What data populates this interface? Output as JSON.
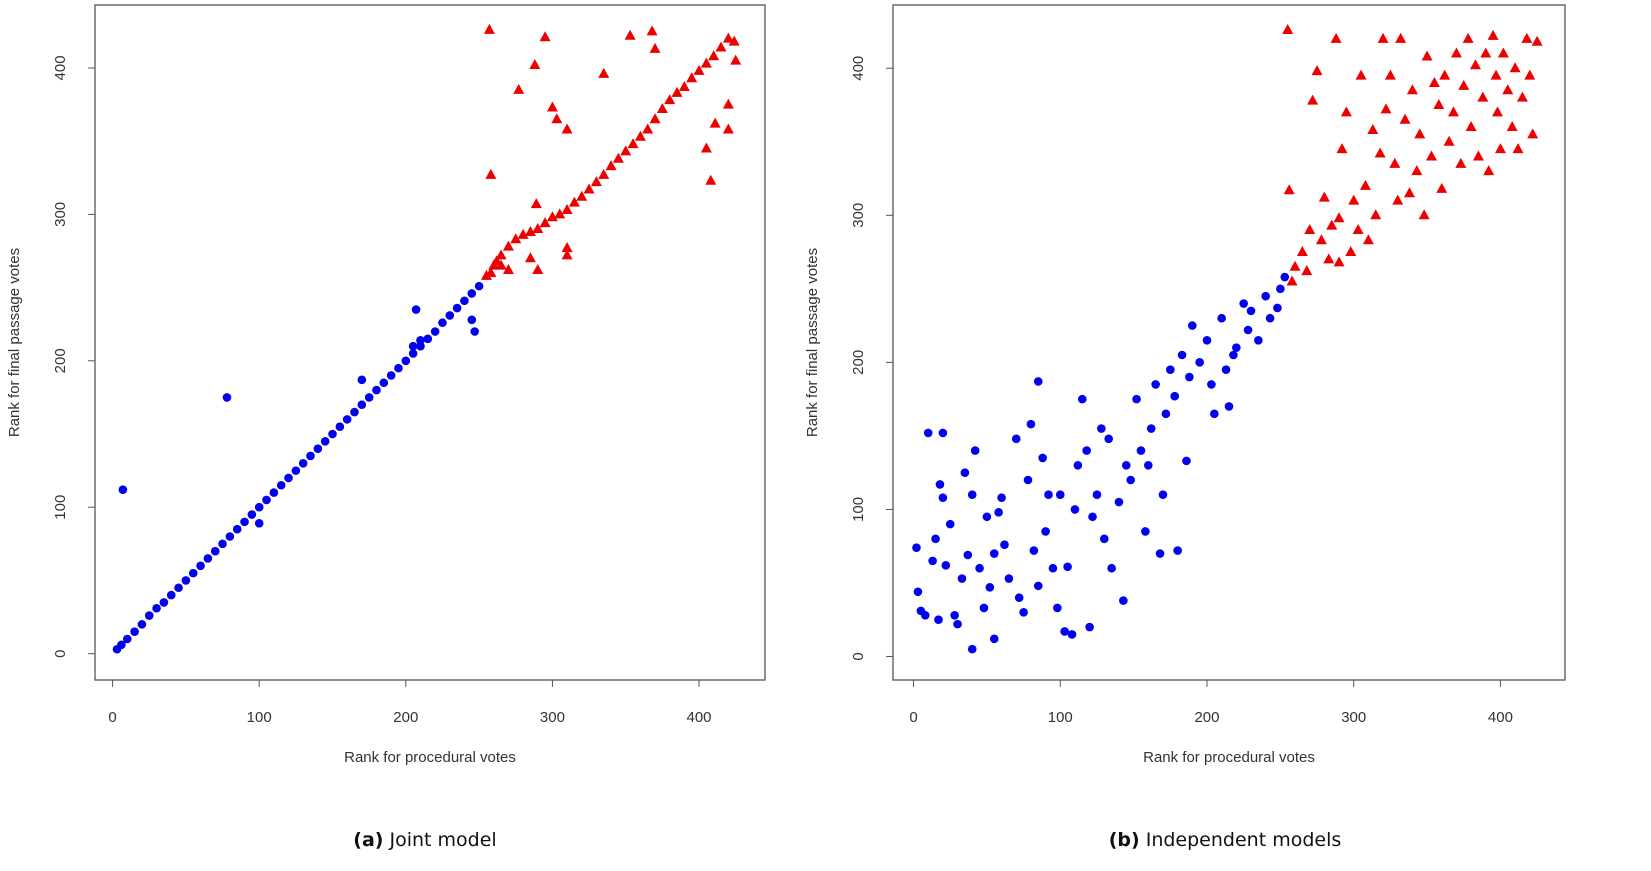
{
  "chart_data": [
    {
      "type": "scatter",
      "caption": {
        "label": "(a)",
        "text": "Joint model"
      },
      "x_label": "Rank for procedural votes",
      "y_label": "Rank for final passage votes",
      "xlim": [
        -12,
        445
      ],
      "ylim": [
        -18,
        443
      ],
      "xticks": [
        0,
        100,
        200,
        300,
        400
      ],
      "yticks": [
        0,
        100,
        200,
        300,
        400
      ],
      "series": [
        {
          "color": "#0000ee",
          "marker": "circle",
          "x": [
            3,
            6,
            10,
            15,
            20,
            25,
            30,
            35,
            40,
            45,
            50,
            55,
            60,
            65,
            70,
            75,
            80,
            85,
            90,
            95,
            100,
            105,
            110,
            115,
            120,
            125,
            130,
            135,
            140,
            145,
            150,
            155,
            160,
            165,
            170,
            175,
            180,
            185,
            190,
            195,
            200,
            205,
            210,
            215,
            220,
            225,
            230,
            235,
            240,
            245,
            250,
            7,
            78,
            207,
            245,
            247,
            170,
            100,
            205,
            210
          ],
          "values": [
            3,
            6,
            10,
            15,
            20,
            26,
            31,
            35,
            40,
            45,
            50,
            55,
            60,
            65,
            70,
            75,
            80,
            85,
            90,
            95,
            100,
            105,
            110,
            115,
            120,
            125,
            130,
            135,
            140,
            145,
            150,
            155,
            160,
            165,
            170,
            175,
            180,
            185,
            190,
            195,
            200,
            205,
            210,
            215,
            220,
            226,
            231,
            236,
            241,
            246,
            251,
            112,
            175,
            235,
            228,
            220,
            187,
            89,
            210,
            214
          ]
        },
        {
          "color": "#ee0000",
          "marker": "triangle",
          "x": [
            255,
            260,
            265,
            270,
            275,
            280,
            285,
            290,
            295,
            300,
            305,
            310,
            315,
            320,
            325,
            330,
            335,
            340,
            345,
            350,
            355,
            360,
            365,
            370,
            375,
            380,
            385,
            390,
            395,
            400,
            405,
            410,
            415,
            420,
            257,
            258,
            277,
            288,
            295,
            300,
            303,
            310,
            335,
            353,
            368,
            370,
            408,
            405,
            411,
            420,
            420,
            425,
            424,
            290,
            285,
            310,
            310,
            270,
            265,
            289,
            262,
            258
          ],
          "values": [
            258,
            265,
            272,
            278,
            283,
            286,
            288,
            290,
            294,
            298,
            300,
            303,
            308,
            312,
            317,
            322,
            327,
            333,
            338,
            343,
            348,
            353,
            358,
            365,
            372,
            378,
            383,
            387,
            393,
            398,
            403,
            408,
            414,
            420,
            426,
            327,
            385,
            402,
            421,
            373,
            365,
            358,
            396,
            422,
            425,
            413,
            323,
            345,
            362,
            375,
            358,
            405,
            418,
            262,
            270,
            277,
            272,
            262,
            265,
            307,
            268,
            260
          ]
        }
      ]
    },
    {
      "type": "scatter",
      "caption": {
        "label": "(b)",
        "text": "Independent models"
      },
      "x_label": "Rank for procedural votes",
      "y_label": "Rank for final passage votes",
      "xlim": [
        -14,
        444
      ],
      "ylim": [
        -16,
        443
      ],
      "xticks": [
        0,
        100,
        200,
        300,
        400
      ],
      "yticks": [
        0,
        100,
        200,
        300,
        400
      ],
      "series": [
        {
          "color": "#0000ee",
          "marker": "circle",
          "x": [
            2,
            3,
            5,
            8,
            10,
            13,
            15,
            17,
            18,
            20,
            20,
            22,
            25,
            28,
            30,
            33,
            35,
            37,
            40,
            40,
            42,
            45,
            48,
            50,
            52,
            55,
            55,
            58,
            60,
            62,
            65,
            70,
            72,
            75,
            78,
            80,
            82,
            85,
            85,
            88,
            90,
            92,
            95,
            98,
            100,
            103,
            105,
            108,
            110,
            112,
            115,
            118,
            120,
            122,
            125,
            128,
            130,
            133,
            135,
            140,
            143,
            145,
            148,
            152,
            155,
            158,
            160,
            162,
            165,
            168,
            170,
            172,
            175,
            178,
            180,
            183,
            186,
            188,
            190,
            195,
            200,
            203,
            205,
            210,
            213,
            215,
            218,
            220,
            225,
            228,
            230,
            235,
            240,
            243,
            248,
            250,
            253
          ],
          "values": [
            74,
            44,
            31,
            28,
            152,
            65,
            80,
            25,
            117,
            152,
            108,
            62,
            90,
            28,
            22,
            53,
            125,
            69,
            5,
            110,
            140,
            60,
            33,
            95,
            47,
            12,
            70,
            98,
            108,
            76,
            53,
            148,
            40,
            30,
            120,
            158,
            72,
            187,
            48,
            135,
            85,
            110,
            60,
            33,
            110,
            17,
            61,
            15,
            100,
            130,
            175,
            140,
            20,
            95,
            110,
            155,
            80,
            148,
            60,
            105,
            38,
            130,
            120,
            175,
            140,
            85,
            130,
            155,
            185,
            70,
            110,
            165,
            195,
            177,
            72,
            205,
            133,
            190,
            225,
            200,
            215,
            185,
            165,
            230,
            195,
            170,
            205,
            210,
            240,
            222,
            235,
            215,
            245,
            230,
            237,
            250,
            258
          ]
        },
        {
          "color": "#ee0000",
          "marker": "triangle",
          "x": [
            255,
            256,
            258,
            260,
            265,
            268,
            270,
            272,
            275,
            278,
            280,
            283,
            285,
            288,
            290,
            290,
            292,
            295,
            298,
            300,
            303,
            305,
            308,
            310,
            313,
            315,
            318,
            320,
            322,
            325,
            328,
            330,
            332,
            335,
            338,
            340,
            343,
            345,
            348,
            350,
            353,
            355,
            358,
            360,
            362,
            365,
            368,
            370,
            373,
            375,
            378,
            380,
            383,
            385,
            388,
            390,
            392,
            395,
            397,
            398,
            400,
            402,
            405,
            408,
            410,
            412,
            415,
            418,
            420,
            422,
            425
          ],
          "values": [
            426,
            317,
            255,
            265,
            275,
            262,
            290,
            378,
            398,
            283,
            312,
            270,
            293,
            420,
            298,
            268,
            345,
            370,
            275,
            310,
            290,
            395,
            320,
            283,
            358,
            300,
            342,
            420,
            372,
            395,
            335,
            310,
            420,
            365,
            315,
            385,
            330,
            355,
            300,
            408,
            340,
            390,
            375,
            318,
            395,
            350,
            370,
            410,
            335,
            388,
            420,
            360,
            402,
            340,
            380,
            410,
            330,
            422,
            395,
            370,
            345,
            410,
            385,
            360,
            400,
            345,
            380,
            420,
            395,
            355,
            418
          ]
        }
      ]
    }
  ]
}
